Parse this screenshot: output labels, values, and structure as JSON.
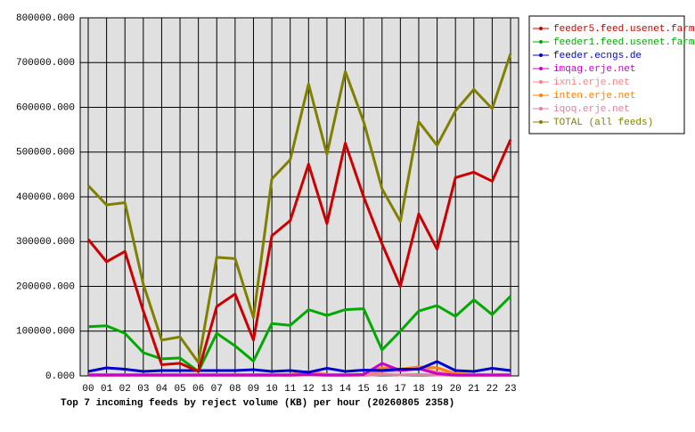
{
  "chart_data": {
    "type": "line",
    "title": "Top 7 incoming feeds by reject volume (KB) per hour (20260805 2358)",
    "categories": [
      "00",
      "01",
      "02",
      "03",
      "04",
      "05",
      "06",
      "07",
      "08",
      "09",
      "10",
      "11",
      "12",
      "13",
      "14",
      "15",
      "16",
      "17",
      "18",
      "19",
      "20",
      "21",
      "22",
      "23"
    ],
    "ylim": [
      0,
      800000
    ],
    "yticks": [
      {
        "value": 0,
        "label": "0.000"
      },
      {
        "value": 100000,
        "label": "100000.000"
      },
      {
        "value": 200000,
        "label": "200000.000"
      },
      {
        "value": 300000,
        "label": "300000.000"
      },
      {
        "value": 400000,
        "label": "400000.000"
      },
      {
        "value": 500000,
        "label": "500000.000"
      },
      {
        "value": 600000,
        "label": "600000.000"
      },
      {
        "value": 700000,
        "label": "700000.000"
      },
      {
        "value": 800000,
        "label": "800000.000"
      }
    ],
    "grid": true,
    "series": [
      {
        "name": "feeder5.feed.usenet.farm",
        "color": "#cc0000",
        "values": [
          305000,
          255000,
          278000,
          145000,
          25000,
          28000,
          10000,
          155000,
          183000,
          80000,
          313000,
          347000,
          473000,
          340000,
          520000,
          400000,
          295000,
          200000,
          362000,
          283000,
          443000,
          455000,
          435000,
          528000
        ]
      },
      {
        "name": "feeder1.feed.usenet.farm",
        "color": "#00aa00",
        "values": [
          110000,
          112000,
          95000,
          52000,
          38000,
          40000,
          10000,
          95000,
          67000,
          33000,
          117000,
          113000,
          148000,
          135000,
          148000,
          150000,
          58000,
          100000,
          145000,
          157000,
          133000,
          170000,
          137000,
          178000
        ]
      },
      {
        "name": "feeder.ecngs.de",
        "color": "#0000cc",
        "values": [
          10000,
          18000,
          15000,
          10000,
          12000,
          12000,
          12000,
          12000,
          12000,
          14000,
          10000,
          12000,
          8000,
          17000,
          10000,
          13000,
          12000,
          15000,
          15000,
          32000,
          12000,
          10000,
          17000,
          12000
        ]
      },
      {
        "name": "imqag.erje.net",
        "color": "#cc00cc",
        "values": [
          2000,
          2000,
          2000,
          2000,
          2000,
          2000,
          2000,
          2000,
          2000,
          2000,
          2000,
          2000,
          3000,
          2000,
          2000,
          3000,
          28000,
          12000,
          16000,
          5000,
          2000,
          2000,
          2000,
          2000
        ]
      },
      {
        "name": "ixni.erje.net",
        "color": "#ff8080",
        "values": [
          3000,
          3000,
          3000,
          3000,
          3000,
          3000,
          3000,
          3000,
          3000,
          3000,
          3000,
          3000,
          8000,
          3000,
          3000,
          3000,
          10000,
          12000,
          18000,
          8000,
          3000,
          3000,
          3000,
          3000
        ]
      },
      {
        "name": "inten.erje.net",
        "color": "#ff8000",
        "values": [
          3000,
          3000,
          3000,
          3000,
          3000,
          3000,
          3000,
          3000,
          3000,
          3000,
          3000,
          3000,
          10000,
          3000,
          3000,
          3000,
          18000,
          15000,
          20000,
          18000,
          5000,
          3000,
          3000,
          3000
        ]
      },
      {
        "name": "iqoq.erje.net",
        "color": "#e080a0",
        "values": [
          1000,
          1000,
          1000,
          1000,
          1000,
          1000,
          1000,
          1000,
          1000,
          1000,
          1000,
          1000,
          2000,
          1000,
          1000,
          1000,
          3000,
          2000,
          3000,
          2000,
          1000,
          1000,
          1000,
          1000
        ]
      },
      {
        "name": "TOTAL (all feeds)",
        "color": "#808000",
        "values": [
          425000,
          382000,
          387000,
          205000,
          80000,
          87000,
          30000,
          265000,
          262000,
          130000,
          440000,
          483000,
          652000,
          495000,
          680000,
          568000,
          418000,
          345000,
          568000,
          515000,
          592000,
          640000,
          597000,
          720000
        ]
      }
    ]
  }
}
